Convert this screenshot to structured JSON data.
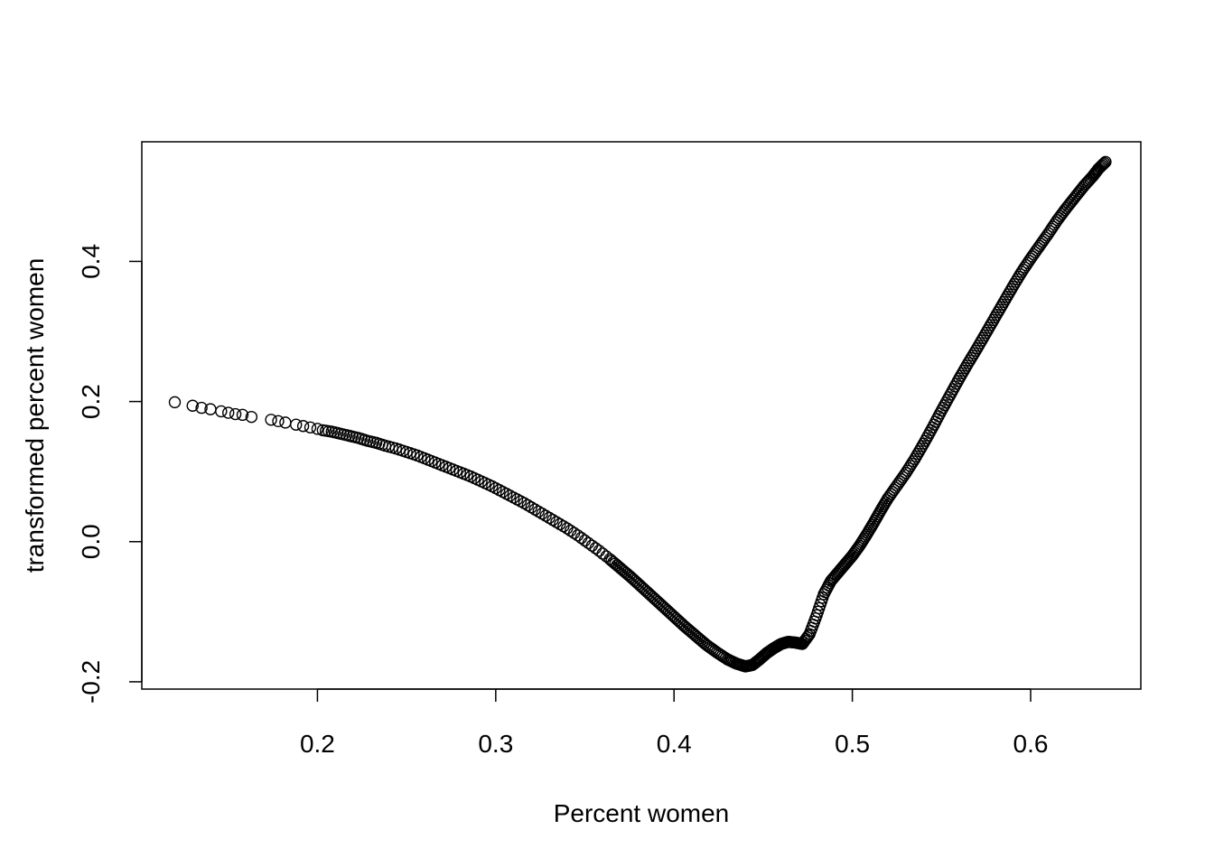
{
  "chart_data": {
    "type": "scatter",
    "title": "",
    "xlabel": "Percent women",
    "ylabel": "transformed percent women",
    "xlim": [
      0.1015,
      0.6618
    ],
    "ylim": [
      -0.2104,
      0.5707
    ],
    "xticks": [
      0.2,
      0.3,
      0.4,
      0.5,
      0.6
    ],
    "xtick_labels": [
      "0.2",
      "0.3",
      "0.4",
      "0.5",
      "0.6"
    ],
    "yticks": [
      -0.2,
      0.0,
      0.2,
      0.4
    ],
    "ytick_labels": [
      "-0.2",
      "0.0",
      "0.2",
      "0.4"
    ],
    "grid": false,
    "legend": "none",
    "marker": "open-circle",
    "series": [
      {
        "x": [
          0.12,
          0.13,
          0.135,
          0.14,
          0.146,
          0.15,
          0.154,
          0.158,
          0.163,
          0.174,
          0.178,
          0.182,
          0.188,
          0.192,
          0.196,
          0.2,
          0.203,
          0.208,
          0.213,
          0.218,
          0.223,
          0.228,
          0.233,
          0.238,
          0.244,
          0.25,
          0.256,
          0.262,
          0.268,
          0.274,
          0.28,
          0.286,
          0.292,
          0.298,
          0.304,
          0.31,
          0.316,
          0.322,
          0.328,
          0.334,
          0.34,
          0.346,
          0.352,
          0.358,
          0.364,
          0.37,
          0.376,
          0.382,
          0.388,
          0.394,
          0.4,
          0.406,
          0.412,
          0.418,
          0.424,
          0.43,
          0.435,
          0.44,
          0.444,
          0.448,
          0.452,
          0.456,
          0.46,
          0.464,
          0.468,
          0.472,
          0.476,
          0.48,
          0.484,
          0.488,
          0.492,
          0.496,
          0.5,
          0.504,
          0.508,
          0.512,
          0.516,
          0.52,
          0.525,
          0.53,
          0.535,
          0.54,
          0.545,
          0.55,
          0.555,
          0.56,
          0.565,
          0.57,
          0.575,
          0.58,
          0.585,
          0.59,
          0.595,
          0.6,
          0.605,
          0.61,
          0.615,
          0.62,
          0.625,
          0.63,
          0.635,
          0.638,
          0.642
        ],
        "y": [
          0.199,
          0.194,
          0.191,
          0.189,
          0.186,
          0.184,
          0.182,
          0.181,
          0.178,
          0.174,
          0.172,
          0.17,
          0.167,
          0.165,
          0.163,
          0.161,
          0.159,
          0.157,
          0.154,
          0.151,
          0.148,
          0.144,
          0.141,
          0.137,
          0.133,
          0.128,
          0.123,
          0.117,
          0.111,
          0.105,
          0.099,
          0.093,
          0.086,
          0.079,
          0.071,
          0.063,
          0.055,
          0.046,
          0.037,
          0.028,
          0.019,
          0.009,
          -0.002,
          -0.013,
          -0.025,
          -0.038,
          -0.051,
          -0.065,
          -0.079,
          -0.093,
          -0.107,
          -0.121,
          -0.134,
          -0.147,
          -0.158,
          -0.168,
          -0.174,
          -0.178,
          -0.176,
          -0.168,
          -0.159,
          -0.152,
          -0.146,
          -0.143,
          -0.144,
          -0.146,
          -0.132,
          -0.105,
          -0.075,
          -0.056,
          -0.044,
          -0.032,
          -0.02,
          -0.006,
          0.01,
          0.027,
          0.045,
          0.062,
          0.08,
          0.098,
          0.118,
          0.14,
          0.163,
          0.187,
          0.21,
          0.233,
          0.255,
          0.276,
          0.298,
          0.32,
          0.342,
          0.364,
          0.385,
          0.404,
          0.422,
          0.44,
          0.459,
          0.476,
          0.492,
          0.508,
          0.522,
          0.532,
          0.542
        ]
      }
    ]
  }
}
